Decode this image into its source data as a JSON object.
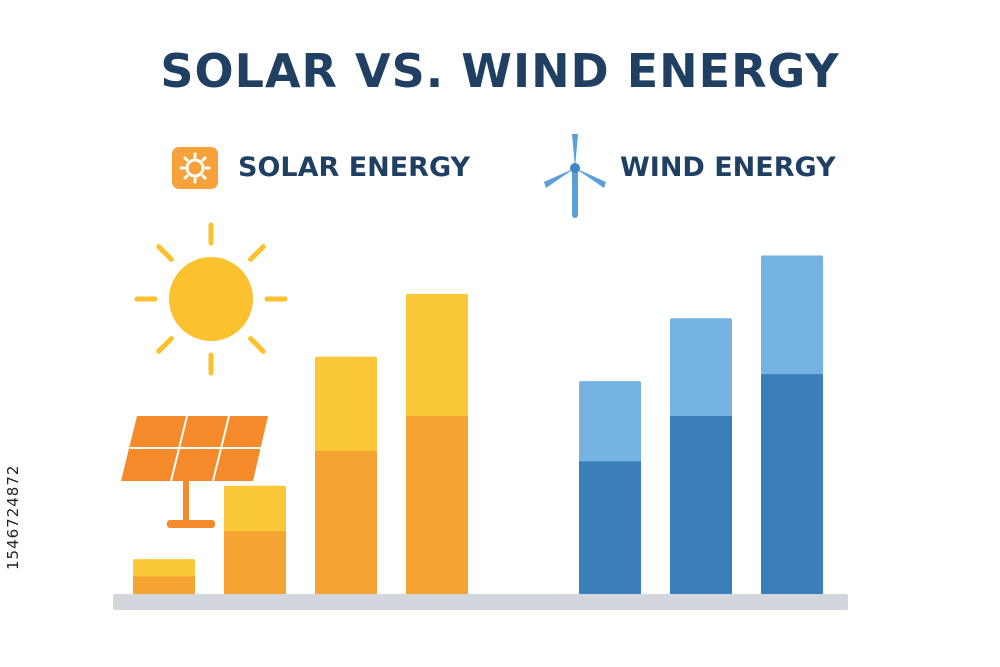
{
  "title": "SOLAR VS. WIND ENERGY",
  "legend": {
    "solar": {
      "label": "SOLAR ENERGY",
      "icon": "sun-gear-badge-icon",
      "color": "#f4a13a"
    },
    "wind": {
      "label": "WIND ENERGY",
      "icon": "wind-turbine-icon",
      "color": "#5a9fd8"
    }
  },
  "side_id": "1546724872",
  "chart_data": {
    "type": "bar",
    "title": "SOLAR VS. WIND ENERGY",
    "stacked": true,
    "ylim": [
      0,
      100
    ],
    "grid": false,
    "legend_position": "top",
    "groups": [
      {
        "name": "SOLAR ENERGY",
        "bars": [
          {
            "lower": 5,
            "upper": 10
          },
          {
            "lower": 18,
            "upper": 31
          },
          {
            "lower": 41,
            "upper": 68
          },
          {
            "lower": 51,
            "upper": 86
          }
        ],
        "lower_color": "#f5a332",
        "upper_color": "#fbc83a"
      },
      {
        "name": "WIND ENERGY",
        "bars": [
          {
            "lower": 38,
            "upper": 61
          },
          {
            "lower": 51,
            "upper": 79
          },
          {
            "lower": 63,
            "upper": 97
          }
        ],
        "lower_color": "#3a7fba",
        "upper_color": "#75b3e3"
      }
    ],
    "baseline_color": "#d3d6dc",
    "sun_color": "#fbc12f",
    "panel_color": "#f58a2a"
  }
}
